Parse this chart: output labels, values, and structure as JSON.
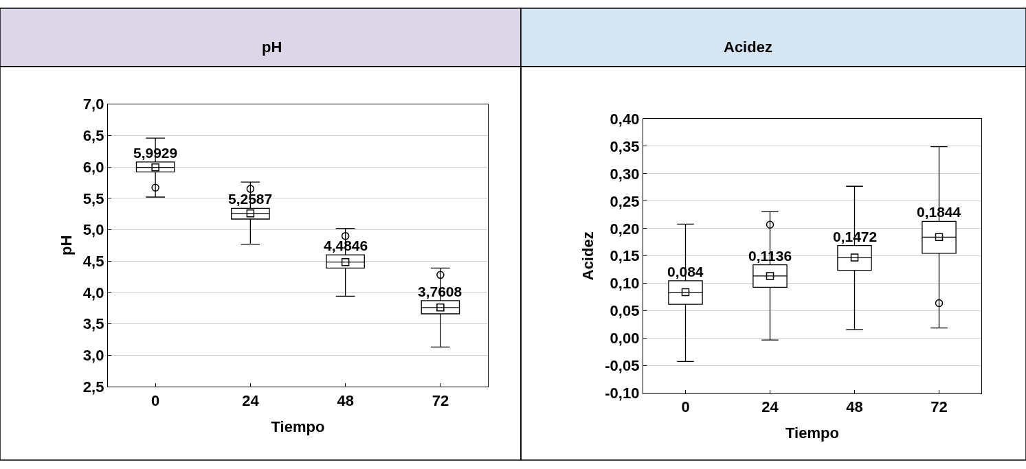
{
  "chart_data": [
    {
      "type": "box",
      "title": "pH",
      "xlabel": "Tiempo",
      "ylabel": "pH",
      "categories": [
        "0",
        "24",
        "48",
        "72"
      ],
      "boxes": [
        {
          "low": 5.52,
          "q1": 5.92,
          "median": 5.9929,
          "q3": 6.08,
          "high": 6.46,
          "mean": 5.9929,
          "outliers": [
            5.67
          ]
        },
        {
          "low": 4.77,
          "q1": 5.17,
          "median": 5.2587,
          "q3": 5.34,
          "high": 5.76,
          "mean": 5.2587,
          "outliers": [
            5.65
          ]
        },
        {
          "low": 3.94,
          "q1": 4.39,
          "median": 4.4846,
          "q3": 4.6,
          "high": 5.02,
          "mean": 4.4846,
          "outliers": [
            4.9
          ]
        },
        {
          "low": 3.13,
          "q1": 3.66,
          "median": 3.7608,
          "q3": 3.87,
          "high": 4.39,
          "mean": 3.7608,
          "outliers": [
            4.28
          ]
        }
      ],
      "value_labels": [
        "5,9929",
        "5,2587",
        "4,4846",
        "3,7608"
      ],
      "ylim": [
        2.5,
        7.0
      ],
      "yticks": [
        {
          "value": 2.5,
          "label": "2,5"
        },
        {
          "value": 3.0,
          "label": "3,0"
        },
        {
          "value": 3.5,
          "label": "3,5"
        },
        {
          "value": 4.0,
          "label": "4,0"
        },
        {
          "value": 4.5,
          "label": "4,5"
        },
        {
          "value": 5.0,
          "label": "5,0"
        },
        {
          "value": 5.5,
          "label": "5,5"
        },
        {
          "value": 6.0,
          "label": "6,0"
        },
        {
          "value": 6.5,
          "label": "6,5"
        },
        {
          "value": 7.0,
          "label": "7,0"
        }
      ],
      "grid": "y"
    },
    {
      "type": "box",
      "title": "Acidez",
      "xlabel": "Tiempo",
      "ylabel": "Acidez",
      "categories": [
        "0",
        "24",
        "48",
        "72"
      ],
      "boxes": [
        {
          "low": -0.042,
          "q1": 0.062,
          "median": 0.084,
          "q3": 0.105,
          "high": 0.208,
          "mean": 0.084
        },
        {
          "low": -0.003,
          "q1": 0.093,
          "median": 0.1136,
          "q3": 0.134,
          "high": 0.231,
          "mean": 0.1136,
          "outliers": [
            0.207
          ]
        },
        {
          "low": 0.016,
          "q1": 0.124,
          "median": 0.1472,
          "q3": 0.169,
          "high": 0.277,
          "mean": 0.1472
        },
        {
          "low": 0.019,
          "q1": 0.155,
          "median": 0.1844,
          "q3": 0.213,
          "high": 0.349,
          "mean": 0.1844,
          "outliers": [
            0.064
          ]
        }
      ],
      "value_labels": [
        "0,084",
        "0,1136",
        "0,1472",
        "0,1844"
      ],
      "ylim": [
        -0.1,
        0.4
      ],
      "yticks": [
        {
          "value": -0.1,
          "label": "-0,10"
        },
        {
          "value": -0.05,
          "label": "-0,05"
        },
        {
          "value": 0.0,
          "label": "0,00"
        },
        {
          "value": 0.05,
          "label": "0,05"
        },
        {
          "value": 0.1,
          "label": "0,10"
        },
        {
          "value": 0.15,
          "label": "0,15"
        },
        {
          "value": 0.2,
          "label": "0,20"
        },
        {
          "value": 0.25,
          "label": "0,25"
        },
        {
          "value": 0.3,
          "label": "0,30"
        },
        {
          "value": 0.35,
          "label": "0,35"
        },
        {
          "value": 0.4,
          "label": "0,40"
        }
      ],
      "grid": "y"
    }
  ]
}
